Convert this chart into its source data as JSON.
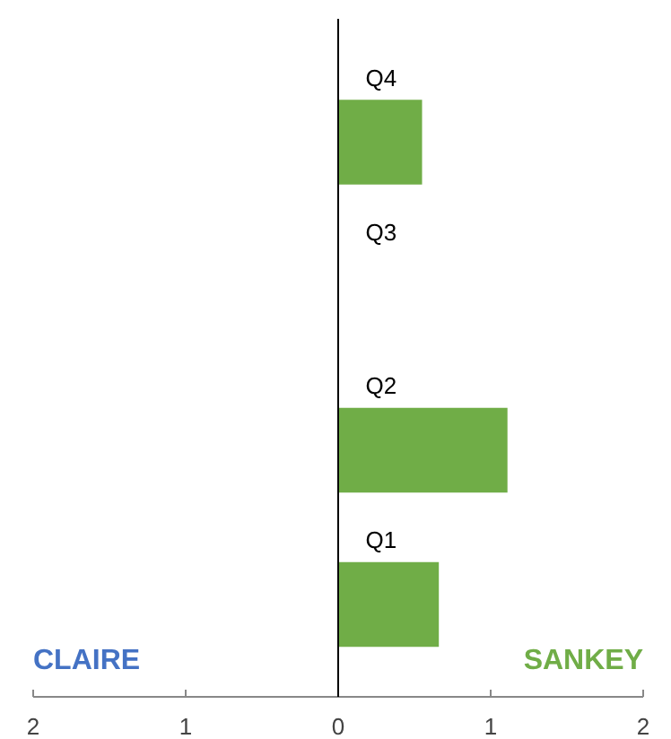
{
  "chart_data": {
    "type": "bar",
    "orientation": "horizontal",
    "categories": [
      "Q4",
      "Q3",
      "Q2",
      "Q1"
    ],
    "series": [
      {
        "name": "CLAIRE",
        "color": "#4472c4",
        "values": [
          null,
          null,
          null,
          null
        ]
      },
      {
        "name": "SANKEY",
        "color": "#70ad47",
        "values": [
          0.55,
          null,
          1.11,
          0.66
        ]
      }
    ],
    "xlim": [
      -2,
      2
    ],
    "xticks": [
      {
        "value": -2,
        "label": "2"
      },
      {
        "value": -1,
        "label": "1"
      },
      0,
      1,
      2
    ],
    "grid": false
  }
}
